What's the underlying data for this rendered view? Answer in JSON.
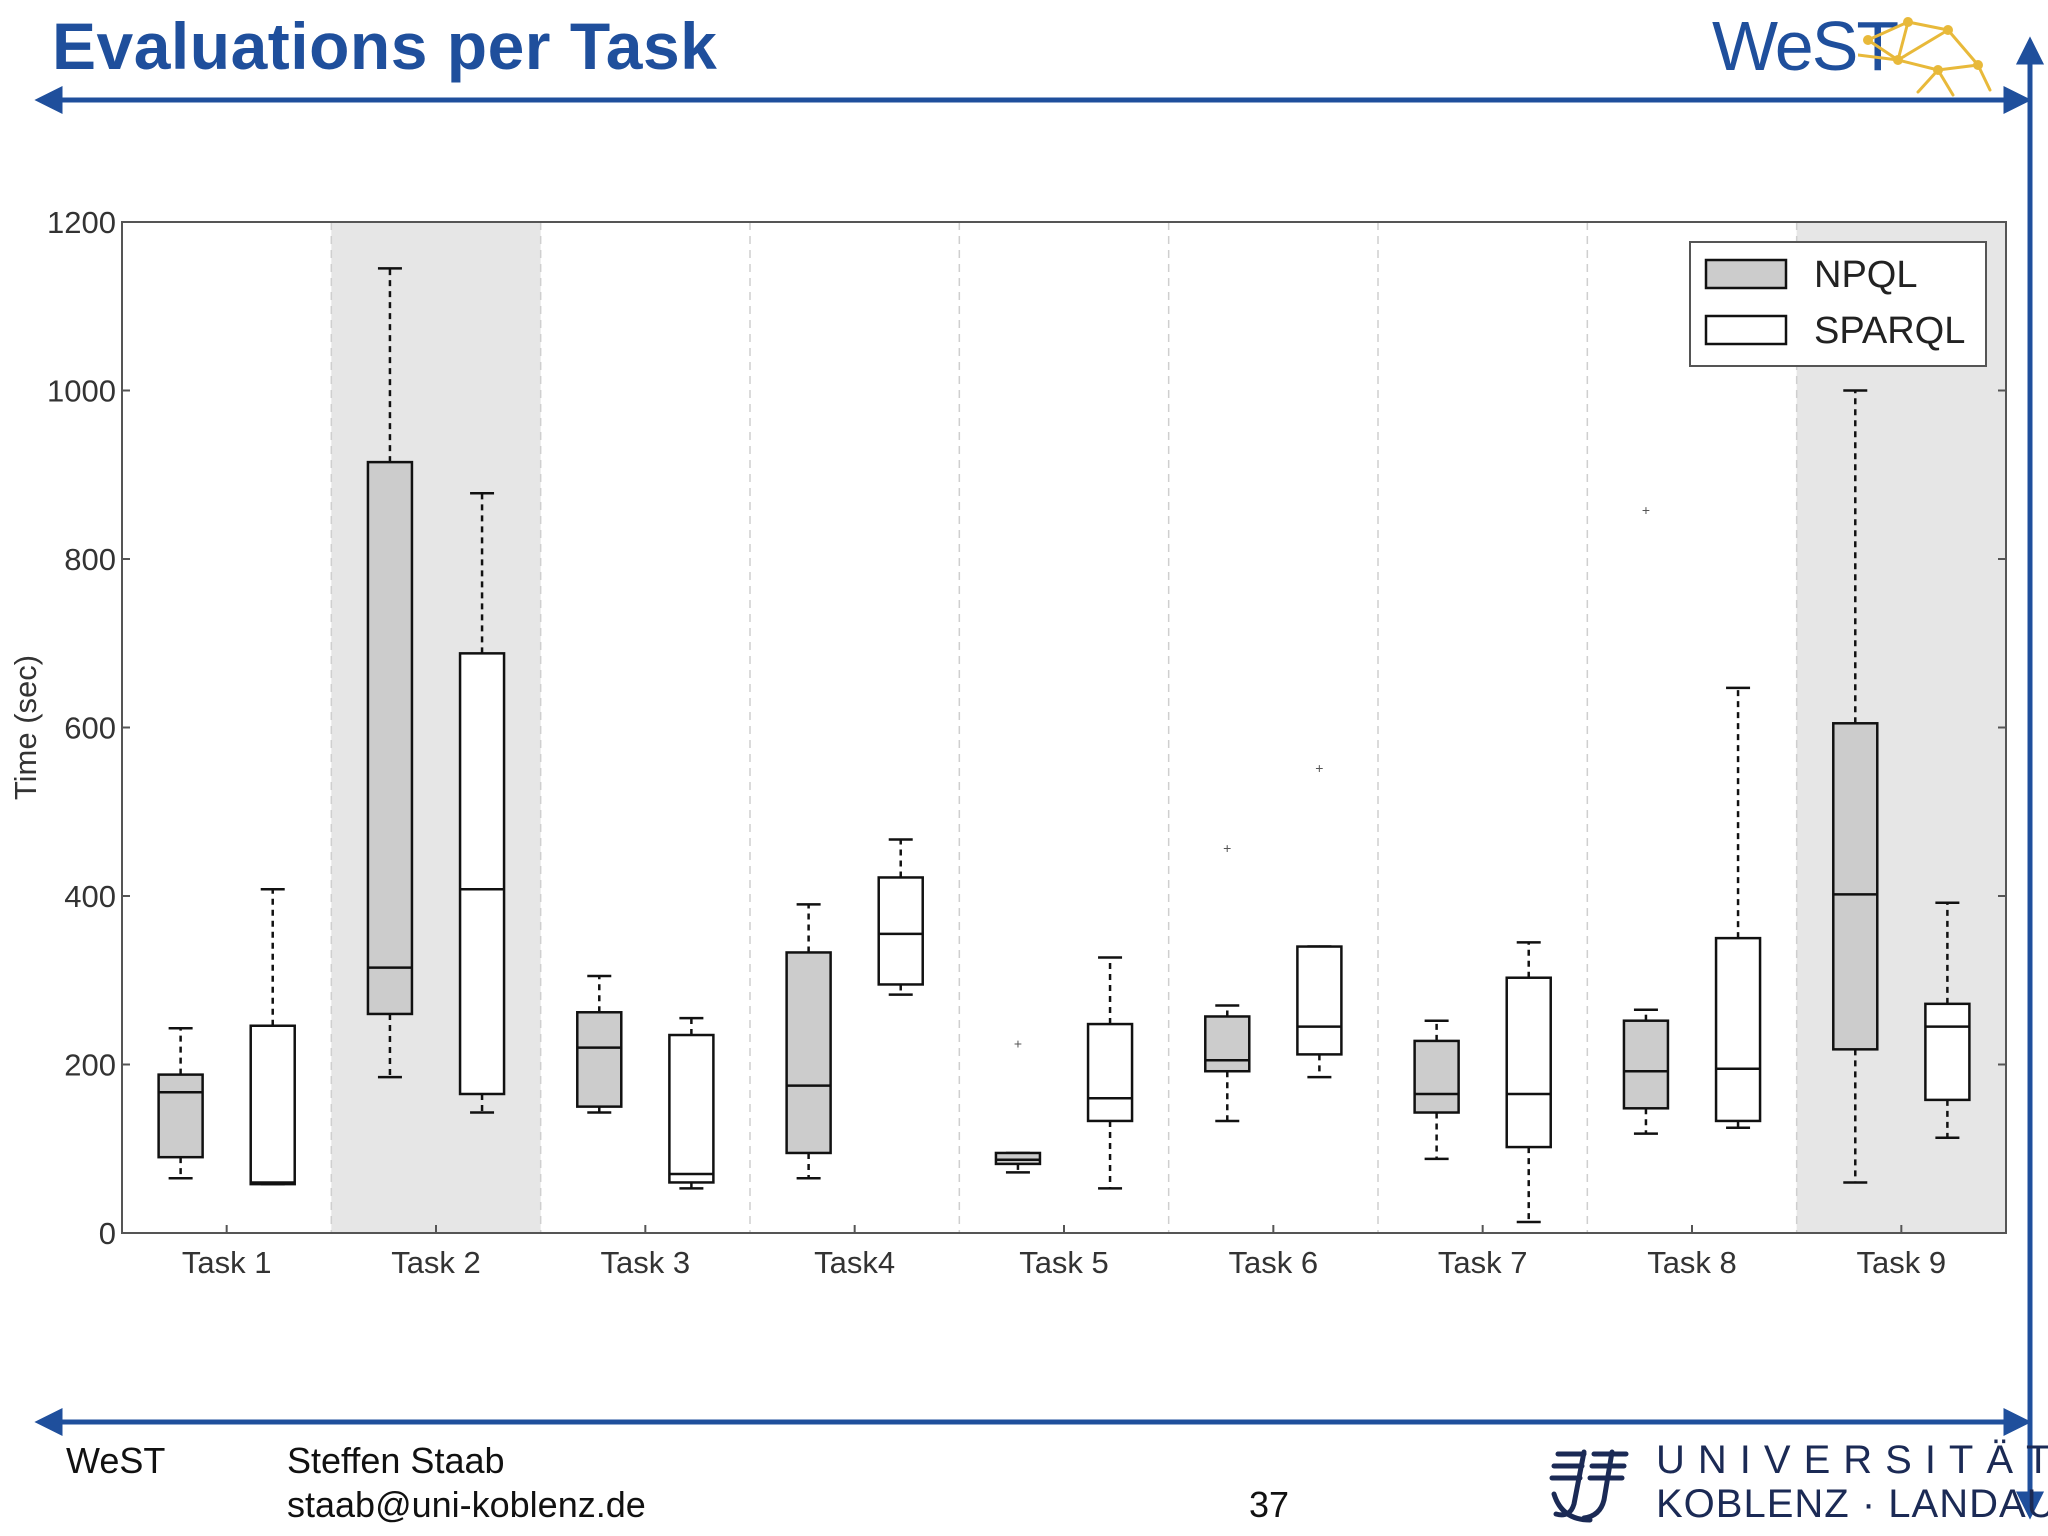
{
  "slide": {
    "title": "Evaluations per Task",
    "logo": "WeST",
    "footer": {
      "org": "WeST",
      "author": "Steffen Staab",
      "email": "staab@uni-koblenz.de",
      "page_number": "37",
      "university_line1": "UNIVERSITÄT",
      "university_line2": "KOBLENZ · LANDAU"
    },
    "colors": {
      "title": "#1f4f9c",
      "rule": "#1f4f9c"
    }
  },
  "chart_data": {
    "type": "boxplot",
    "ylabel": "Time (sec)",
    "ylim": [
      0,
      1200
    ],
    "yticks": [
      "0",
      "200",
      "400",
      "600",
      "800",
      "1000",
      "1200"
    ],
    "categories": [
      "Task 1",
      "Task 2",
      "Task 3",
      "Task4",
      "Task 5",
      "Task 6",
      "Task 7",
      "Task 8",
      "Task 9"
    ],
    "highlighted_categories": [
      1,
      8
    ],
    "grid": "vertical dashed separators",
    "legend_position": "top-right",
    "series": [
      {
        "name": "NPQL",
        "color": "#cccccc",
        "boxes": [
          {
            "whislo": 65,
            "q1": 90,
            "med": 167,
            "q3": 188,
            "whishi": 243,
            "fliers": []
          },
          {
            "whislo": 185,
            "q1": 260,
            "med": 315,
            "q3": 915,
            "whishi": 1145,
            "fliers": []
          },
          {
            "whislo": 143,
            "q1": 150,
            "med": 220,
            "q3": 262,
            "whishi": 305,
            "fliers": []
          },
          {
            "whislo": 65,
            "q1": 95,
            "med": 175,
            "q3": 333,
            "whishi": 390,
            "fliers": []
          },
          {
            "whislo": 72,
            "q1": 82,
            "med": 87,
            "q3": 95,
            "whishi": 95,
            "fliers": [
              225
            ]
          },
          {
            "whislo": 133,
            "q1": 192,
            "med": 205,
            "q3": 257,
            "whishi": 270,
            "fliers": [
              457
            ]
          },
          {
            "whislo": 88,
            "q1": 143,
            "med": 165,
            "q3": 228,
            "whishi": 252,
            "fliers": []
          },
          {
            "whislo": 118,
            "q1": 148,
            "med": 192,
            "q3": 252,
            "whishi": 265,
            "fliers": [
              858
            ]
          },
          {
            "whislo": 60,
            "q1": 218,
            "med": 402,
            "q3": 605,
            "whishi": 1000,
            "fliers": []
          }
        ]
      },
      {
        "name": "SPARQL",
        "color": "#ffffff",
        "boxes": [
          {
            "whislo": 58,
            "q1": 58,
            "med": 60,
            "q3": 246,
            "whishi": 408,
            "fliers": []
          },
          {
            "whislo": 143,
            "q1": 165,
            "med": 408,
            "q3": 688,
            "whishi": 878,
            "fliers": []
          },
          {
            "whislo": 53,
            "q1": 60,
            "med": 70,
            "q3": 235,
            "whishi": 255,
            "fliers": []
          },
          {
            "whislo": 283,
            "q1": 295,
            "med": 355,
            "q3": 422,
            "whishi": 467,
            "fliers": []
          },
          {
            "whislo": 53,
            "q1": 133,
            "med": 160,
            "q3": 248,
            "whishi": 327,
            "fliers": []
          },
          {
            "whislo": 185,
            "q1": 212,
            "med": 245,
            "q3": 340,
            "whishi": 340,
            "fliers": [
              552
            ]
          },
          {
            "whislo": 13,
            "q1": 102,
            "med": 165,
            "q3": 303,
            "whishi": 345,
            "fliers": []
          },
          {
            "whislo": 125,
            "q1": 133,
            "med": 195,
            "q3": 350,
            "whishi": 647,
            "fliers": []
          },
          {
            "whislo": 113,
            "q1": 158,
            "med": 245,
            "q3": 272,
            "whishi": 392,
            "fliers": []
          }
        ]
      }
    ]
  }
}
